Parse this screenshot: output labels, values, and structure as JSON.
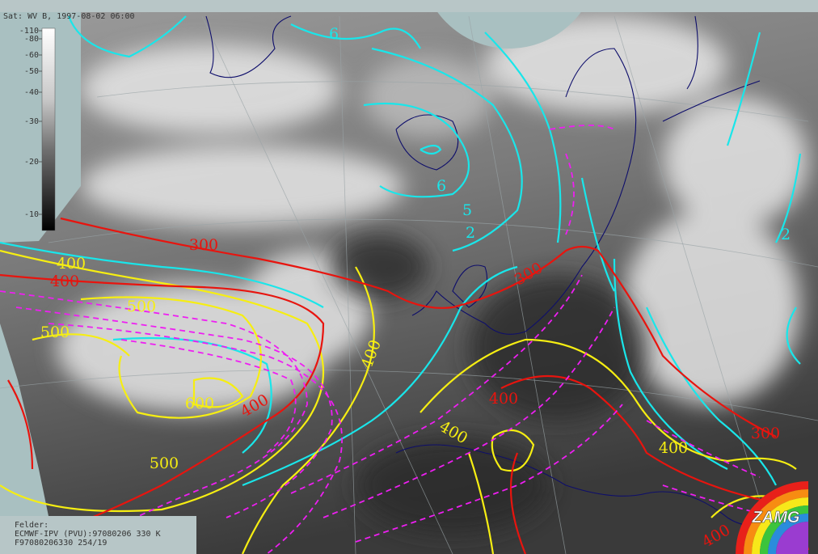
{
  "header": "Sat: WV B, 1997-08-02 06:00",
  "colorbar": {
    "ticks": [
      -110,
      -80,
      -60,
      -50,
      -40,
      -30,
      -20,
      -10
    ]
  },
  "footer": {
    "lines": [
      "Felder:",
      "ECMWF-IPV (PVU):97080206 330 K",
      "F97080206330 254/19"
    ]
  },
  "logo": "ZAMG",
  "contour_labels": {
    "pv": [
      6,
      6,
      5,
      2,
      2
    ],
    "height": [
      400,
      500,
      500,
      600,
      500,
      400,
      400,
      400
    ],
    "red": [
      300,
      400,
      400,
      300,
      400,
      300,
      400
    ]
  }
}
